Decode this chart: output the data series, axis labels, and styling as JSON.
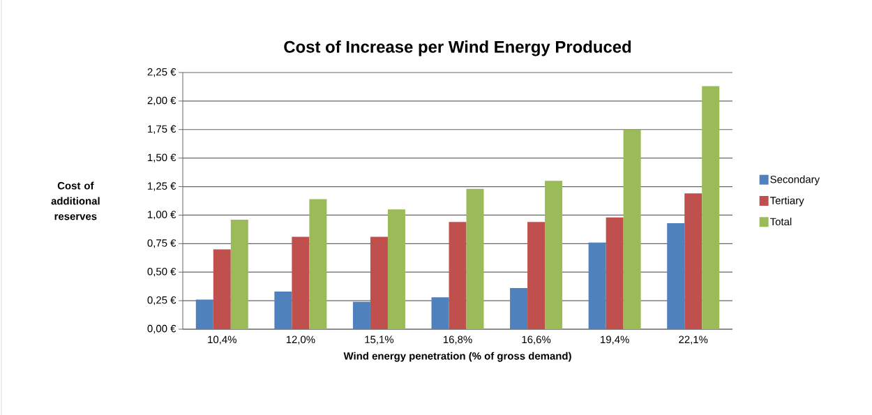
{
  "chart_data": {
    "type": "bar",
    "title": "Cost of Increase per Wind Energy Produced",
    "xlabel": "Wind energy penetration (% of gross demand)",
    "ylabel": "Cost of additional reserves",
    "categories": [
      "10,4%",
      "12,0%",
      "15,1%",
      "16,8%",
      "16,6%",
      "19,4%",
      "22,1%"
    ],
    "series": [
      {
        "name": "Secondary",
        "color": "#4f81bd",
        "values": [
          0.26,
          0.33,
          0.24,
          0.28,
          0.36,
          0.76,
          0.93
        ]
      },
      {
        "name": "Tertiary",
        "color": "#c0504d",
        "values": [
          0.7,
          0.81,
          0.81,
          0.94,
          0.94,
          0.98,
          1.19
        ]
      },
      {
        "name": "Total",
        "color": "#9bbb59",
        "values": [
          0.96,
          1.14,
          1.05,
          1.23,
          1.3,
          1.75,
          2.13
        ]
      }
    ],
    "ylim": [
      0,
      2.25
    ],
    "yticks": [
      {
        "value": 0,
        "label": "0,00 €"
      },
      {
        "value": 0.25,
        "label": "0,25 €"
      },
      {
        "value": 0.5,
        "label": "0,50 €"
      },
      {
        "value": 0.75,
        "label": "0,75 €"
      },
      {
        "value": 1,
        "label": "1,00 €"
      },
      {
        "value": 1.25,
        "label": "1,25 €"
      },
      {
        "value": 1.5,
        "label": "1,50 €"
      },
      {
        "value": 1.75,
        "label": "1,75 €"
      },
      {
        "value": 2,
        "label": "2,00 €"
      },
      {
        "value": 2.25,
        "label": "2,25 €"
      }
    ],
    "grid": "y",
    "legend": "right"
  }
}
